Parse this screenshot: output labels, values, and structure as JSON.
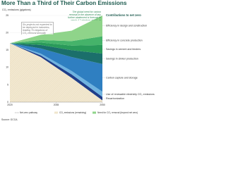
{
  "chart_data": {
    "type": "stacked_area",
    "title": "More Than a Third of Their Carbon Emissions",
    "y_label": "CO₂ emissions (gigatons)",
    "legend_title": "Contributions to net zero",
    "annotation_left": "Six projects not expected to be deployed in industries, leading 76 megatons of CO₂ removal annually",
    "annotation_right": "The global need for carbon removal in the absence of any further abatement is forecast to reach 4.2 gigatons of CO₂ in 2050",
    "x": [
      2020,
      2030,
      2040,
      2050
    ],
    "xlim": [
      2020,
      2050
    ],
    "xticks": [
      2020,
      2035,
      2050
    ],
    "ylim": [
      0,
      25
    ],
    "yticks": [
      0,
      5,
      10,
      15,
      20,
      25
    ],
    "series": [
      {
        "name": "Recarbonization",
        "color": "#1f3e8a",
        "values": [
          0,
          0.5,
          1,
          1
        ]
      },
      {
        "name": "Use of renewable electricity CO₂ emissions",
        "color": "#6fb3e0",
        "values": [
          0,
          0.5,
          1,
          1.5
        ]
      },
      {
        "name": "Carbon capture and storage",
        "color": "#2f7fc1",
        "values": [
          0,
          1.5,
          4,
          8
        ]
      },
      {
        "name": "Savings in clinker production",
        "color": "#1b6f6b",
        "values": [
          0,
          1,
          2,
          3
        ]
      },
      {
        "name": "Savings in cement and binders",
        "color": "#2a9a5a",
        "values": [
          0,
          0.7,
          1.3,
          2.5
        ]
      },
      {
        "name": "Efficiency in concrete production",
        "color": "#45b36a",
        "values": [
          0,
          0.7,
          1.3,
          2.5
        ]
      },
      {
        "name": "Efficiency in design and construction",
        "color": "#8fd48a",
        "values": [
          0,
          1.5,
          3,
          6
        ]
      }
    ],
    "base": {
      "name": "CO₂ emissions (remaining)",
      "color": "#f3e9d2",
      "values": [
        17,
        13,
        7,
        0.5
      ]
    },
    "footer_legend": [
      "Net-zero pathway",
      "CO₂ emissions (remaining)",
      "Need for CO₂ removal (beyond net zero)"
    ],
    "source": "Source: GCCA."
  }
}
